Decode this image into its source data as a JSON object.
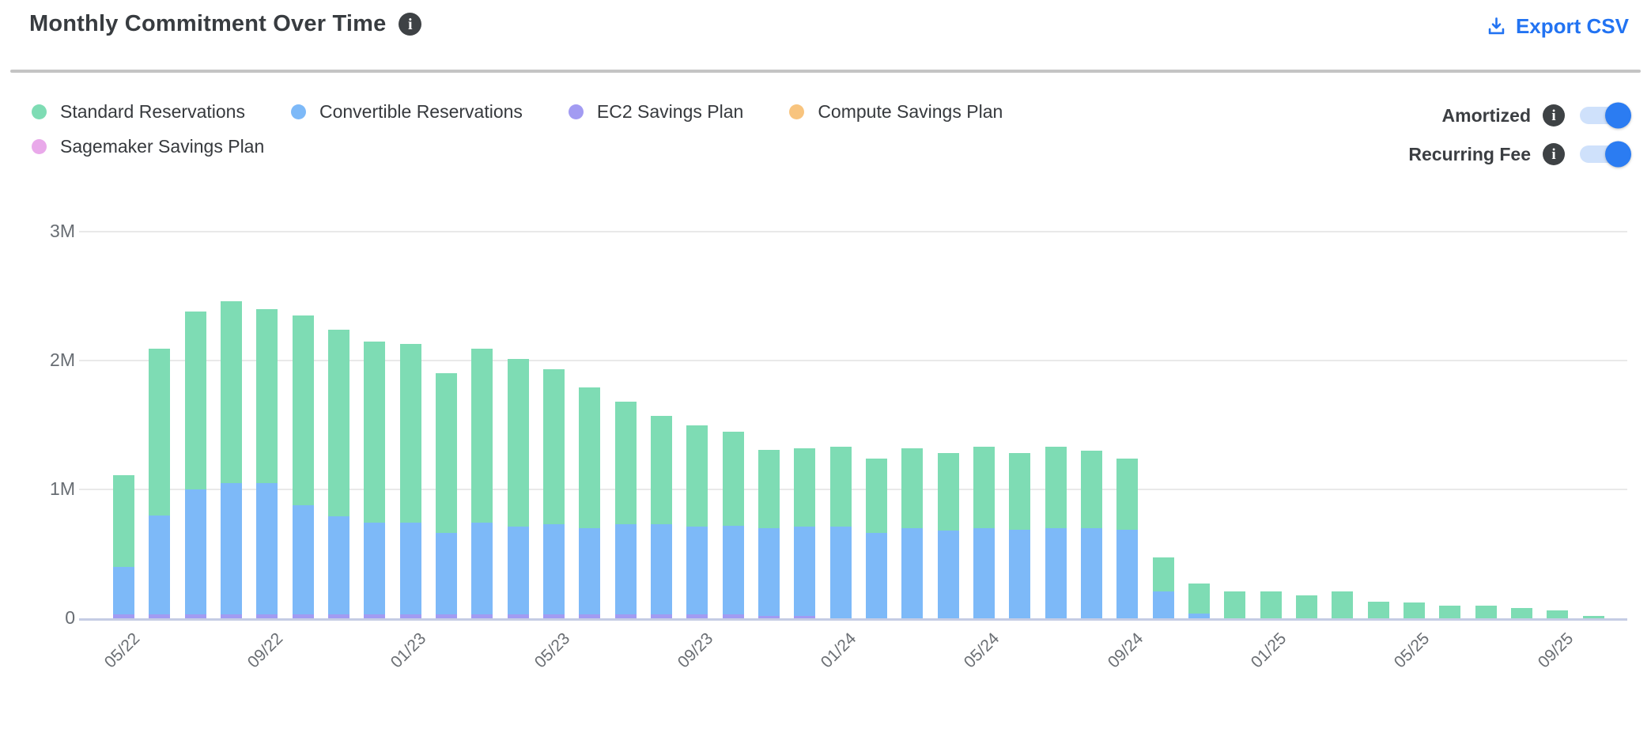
{
  "header": {
    "title": "Monthly Commitment Over Time",
    "export_label": "Export CSV"
  },
  "icons": {
    "title_info": "info-icon",
    "export": "download-icon",
    "amortized_info": "info-icon",
    "recurring_info": "info-icon"
  },
  "colors": {
    "accent_blue": "#2273f2",
    "toggle_track": "#cfe1fb",
    "toggle_knob": "#2b7cf2",
    "axis_line": "#c5cce4",
    "gridline": "#e9e9e9",
    "divider": "#c4c4c4",
    "info_icon_bg": "#3e4245"
  },
  "legend": {
    "items": [
      {
        "label": "Standard Reservations",
        "color": "#7edcb4",
        "row": 0
      },
      {
        "label": "Convertible Reservations",
        "color": "#7db9f8",
        "row": 0
      },
      {
        "label": "EC2 Savings Plan",
        "color": "#a29bf2",
        "row": 0
      },
      {
        "label": "Compute Savings Plan",
        "color": "#f8c47e",
        "row": 0
      },
      {
        "label": "Sagemaker Savings Plan",
        "color": "#e9a9ea",
        "row": 1
      }
    ]
  },
  "toggles": [
    {
      "label": "Amortized",
      "state": "on"
    },
    {
      "label": "Recurring Fee",
      "state": "on"
    }
  ],
  "chart_data": {
    "type": "bar",
    "stacked": true,
    "title": "Monthly Commitment Over Time",
    "xlabel": "",
    "ylabel": "",
    "ylim_millions": [
      0,
      3
    ],
    "y_ticks": [
      {
        "label": "3M",
        "value": 3
      },
      {
        "label": "2M",
        "value": 2
      },
      {
        "label": "1M",
        "value": 1
      },
      {
        "label": "0",
        "value": 0
      }
    ],
    "x_tick_labels_shown": [
      "05/22",
      "09/22",
      "01/23",
      "05/23",
      "09/23",
      "01/24",
      "05/24",
      "09/24",
      "01/25",
      "05/25",
      "09/25"
    ],
    "x_tick_every_n_bars": 4,
    "grid": "horizontal",
    "legend_position": "top-left",
    "categories": [
      "05/22",
      "06/22",
      "07/22",
      "08/22",
      "09/22",
      "10/22",
      "11/22",
      "12/22",
      "01/23",
      "02/23",
      "03/23",
      "04/23",
      "05/23",
      "06/23",
      "07/23",
      "08/23",
      "09/23",
      "10/23",
      "11/23",
      "12/23",
      "01/24",
      "02/24",
      "03/24",
      "04/24",
      "05/24",
      "06/24",
      "07/24",
      "08/24",
      "09/24",
      "10/24",
      "11/24",
      "12/24",
      "01/25",
      "02/25",
      "03/25",
      "04/25",
      "05/25",
      "06/25",
      "07/25",
      "08/25",
      "09/25",
      "10/25"
    ],
    "value_unit": "millions",
    "stack_order_bottom_to_top": [
      "EC2 Savings Plan",
      "Convertible Reservations",
      "Standard Reservations",
      "Compute Savings Plan",
      "Sagemaker Savings Plan"
    ],
    "series": [
      {
        "name": "EC2 Savings Plan",
        "color": "#a29bf2",
        "values": [
          0.03,
          0.03,
          0.03,
          0.03,
          0.03,
          0.03,
          0.03,
          0.03,
          0.03,
          0.03,
          0.03,
          0.03,
          0.03,
          0.03,
          0.03,
          0.03,
          0.03,
          0.03,
          0.02,
          0.02,
          0,
          0,
          0,
          0,
          0,
          0,
          0,
          0,
          0,
          0,
          0,
          0,
          0,
          0,
          0,
          0,
          0,
          0,
          0,
          0,
          0,
          0
        ]
      },
      {
        "name": "Convertible Reservations",
        "color": "#7db9f8",
        "values": [
          0.37,
          0.77,
          0.97,
          1.02,
          1.02,
          0.85,
          0.76,
          0.71,
          0.71,
          0.63,
          0.71,
          0.68,
          0.7,
          0.67,
          0.7,
          0.7,
          0.68,
          0.69,
          0.68,
          0.69,
          0.71,
          0.66,
          0.7,
          0.68,
          0.7,
          0.69,
          0.7,
          0.7,
          0.69,
          0.21,
          0.04,
          0,
          0,
          0,
          0,
          0,
          0,
          0,
          0,
          0,
          0,
          0
        ]
      },
      {
        "name": "Standard Reservations",
        "color": "#7edcb4",
        "values": [
          0.71,
          1.29,
          1.38,
          1.41,
          1.35,
          1.47,
          1.45,
          1.41,
          1.39,
          1.24,
          1.35,
          1.3,
          1.2,
          1.09,
          0.95,
          0.84,
          0.79,
          0.73,
          0.61,
          0.61,
          0.62,
          0.58,
          0.62,
          0.6,
          0.63,
          0.59,
          0.63,
          0.6,
          0.55,
          0.26,
          0.23,
          0.21,
          0.21,
          0.18,
          0.21,
          0.13,
          0.12,
          0.1,
          0.1,
          0.08,
          0.06,
          0.02
        ]
      },
      {
        "name": "Compute Savings Plan",
        "color": "#f8c47e",
        "values": [
          0,
          0,
          0,
          0,
          0,
          0,
          0,
          0,
          0,
          0,
          0,
          0,
          0,
          0,
          0,
          0,
          0,
          0,
          0,
          0,
          0,
          0,
          0,
          0,
          0,
          0,
          0,
          0,
          0,
          0,
          0,
          0,
          0,
          0,
          0,
          0,
          0,
          0,
          0,
          0,
          0,
          0
        ]
      },
      {
        "name": "Sagemaker Savings Plan",
        "color": "#e9a9ea",
        "values": [
          0,
          0,
          0,
          0,
          0,
          0,
          0,
          0,
          0,
          0,
          0,
          0,
          0,
          0,
          0,
          0,
          0,
          0,
          0,
          0,
          0,
          0,
          0,
          0,
          0,
          0,
          0,
          0,
          0,
          0,
          0,
          0,
          0,
          0,
          0,
          0,
          0,
          0,
          0,
          0,
          0,
          0
        ]
      }
    ]
  }
}
